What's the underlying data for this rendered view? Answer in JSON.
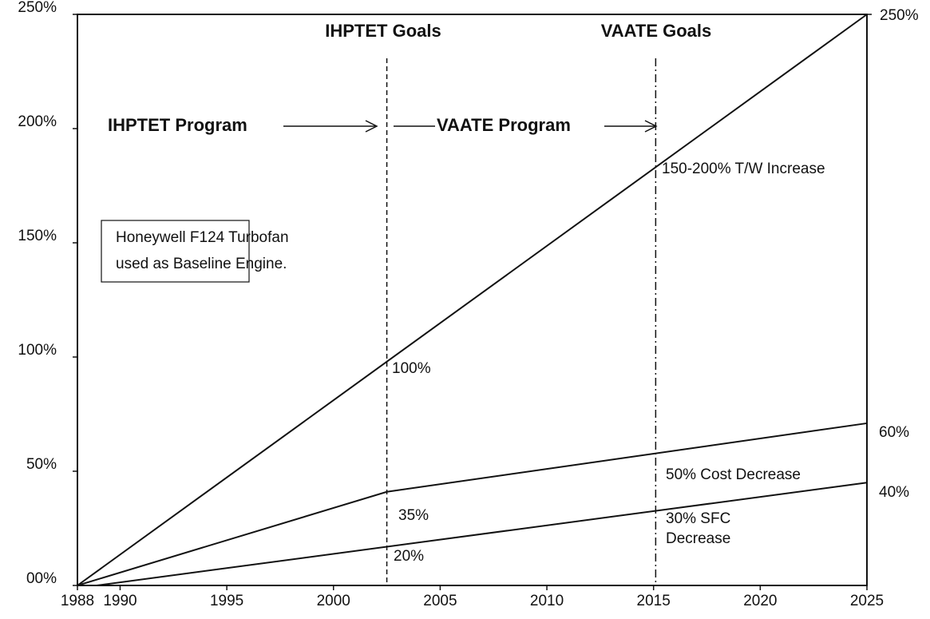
{
  "chart_data": {
    "type": "line",
    "xlim": [
      1988,
      2025
    ],
    "xticks": [
      1988,
      1990,
      1995,
      2000,
      2005,
      2010,
      2015,
      2020,
      2025
    ],
    "ylim": [
      0,
      250
    ],
    "yticks": [
      {
        "value": 0,
        "label": "00%"
      },
      {
        "value": 50,
        "label": "50%"
      },
      {
        "value": 100,
        "label": "100%"
      },
      {
        "value": 150,
        "label": "150%"
      },
      {
        "value": 200,
        "label": "200%"
      },
      {
        "value": 250,
        "label": "250%"
      }
    ],
    "y2lim": [
      0,
      250
    ],
    "y2ticks": [
      {
        "value": 250,
        "label": "250%"
      }
    ],
    "series": [
      {
        "color": "#111111",
        "x": [
          1988,
          2025
        ],
        "values": [
          0,
          250
        ]
      },
      {
        "color": "#111111",
        "x": [
          1988,
          2002.5,
          2025
        ],
        "values": [
          0,
          41,
          71
        ]
      },
      {
        "color": "#111111",
        "x": [
          1988.9,
          2025
        ],
        "values": [
          0,
          45
        ]
      }
    ],
    "vlines": [
      {
        "x": 2002.5,
        "style": "dashed"
      },
      {
        "x": 2015.1,
        "style": "dashdot"
      }
    ],
    "annotations": [
      "IHPTET Goals",
      "VAATE Goals",
      "IHPTET Program",
      "VAATE Program",
      "150-200% T/W Increase",
      "100%",
      "35%",
      "20%",
      "50% Cost Decrease",
      "30% SFC",
      "Decrease",
      "60%",
      "40%"
    ],
    "note": [
      "Honeywell F124 Turbofan",
      "used as Baseline Engine."
    ]
  }
}
